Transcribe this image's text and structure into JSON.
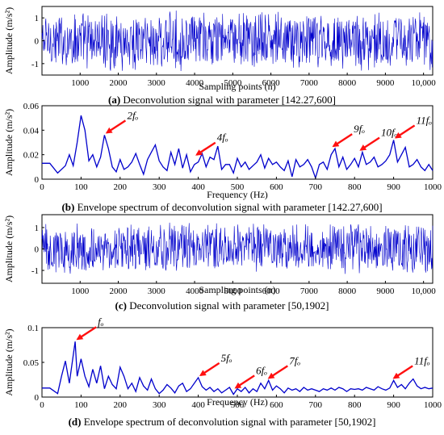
{
  "figure_colors": {
    "signal": "#0000cc",
    "arrow": "#ff1010",
    "axis": "#000000"
  },
  "chart_data": [
    {
      "type": "line",
      "panel": "(a)",
      "caption_prefix": "(a)",
      "caption": "Deconvolution signal with parameter [142.27,600]",
      "xlabel": "Sampling points (n)",
      "ylabel": "Amplitude (m/s²)",
      "xlim": [
        0,
        10240
      ],
      "ylim": [
        -1.5,
        1.5
      ],
      "xticks": [
        1000,
        2000,
        3000,
        4000,
        5000,
        6000,
        7000,
        8000,
        9000,
        "10,000"
      ],
      "yticks": [
        1,
        0,
        -1
      ],
      "grid": false,
      "signal_style": "dense noise",
      "envelope_peak": 1.4,
      "annotations": []
    },
    {
      "type": "line",
      "panel": "(b)",
      "caption_prefix": "(b)",
      "caption": "Envelope spectrum of deconvolution signal with parameter [142.27,600]",
      "xlabel": "Frequency (Hz)",
      "ylabel": "Amplitude (m/s²)",
      "xlim": [
        0,
        1000
      ],
      "ylim": [
        0,
        0.06
      ],
      "xticks": [
        0,
        100,
        200,
        300,
        400,
        500,
        600,
        700,
        800,
        900,
        1000
      ],
      "yticks": [
        0,
        0.02,
        0.04,
        0.06
      ],
      "grid": false,
      "x": [
        0,
        20,
        40,
        60,
        70,
        80,
        90,
        100,
        110,
        120,
        130,
        140,
        150,
        160,
        170,
        180,
        190,
        200,
        210,
        220,
        230,
        240,
        250,
        260,
        270,
        280,
        290,
        300,
        310,
        320,
        330,
        340,
        350,
        360,
        370,
        380,
        390,
        400,
        410,
        420,
        430,
        440,
        450,
        460,
        470,
        480,
        490,
        500,
        510,
        520,
        530,
        540,
        550,
        560,
        570,
        580,
        590,
        600,
        610,
        620,
        630,
        640,
        650,
        660,
        670,
        680,
        690,
        700,
        710,
        720,
        730,
        740,
        750,
        760,
        770,
        780,
        790,
        800,
        810,
        820,
        830,
        840,
        850,
        860,
        870,
        880,
        890,
        900,
        910,
        920,
        930,
        940,
        950,
        960,
        970,
        980,
        990,
        1000
      ],
      "y": [
        0.013,
        0.013,
        0.005,
        0.011,
        0.02,
        0.011,
        0.03,
        0.052,
        0.04,
        0.015,
        0.02,
        0.01,
        0.018,
        0.036,
        0.025,
        0.01,
        0.006,
        0.016,
        0.008,
        0.01,
        0.014,
        0.021,
        0.012,
        0.004,
        0.016,
        0.022,
        0.028,
        0.015,
        0.01,
        0.007,
        0.022,
        0.012,
        0.025,
        0.009,
        0.02,
        0.006,
        0.012,
        0.014,
        0.021,
        0.01,
        0.018,
        0.016,
        0.027,
        0.008,
        0.012,
        0.012,
        0.005,
        0.017,
        0.01,
        0.014,
        0.008,
        0.011,
        0.014,
        0.02,
        0.009,
        0.017,
        0.012,
        0.014,
        0.01,
        0.007,
        0.015,
        0.002,
        0.016,
        0.01,
        0.012,
        0.016,
        0.01,
        0.001,
        0.012,
        0.014,
        0.008,
        0.02,
        0.025,
        0.01,
        0.018,
        0.008,
        0.012,
        0.017,
        0.01,
        0.022,
        0.012,
        0.014,
        0.018,
        0.01,
        0.012,
        0.015,
        0.02,
        0.032,
        0.014,
        0.02,
        0.026,
        0.01,
        0.012,
        0.016,
        0.01,
        0.007,
        0.012,
        0.007
      ],
      "annotations": [
        {
          "label": "2fₒ",
          "x": 160,
          "y": 0.036
        },
        {
          "label": "4fₒ",
          "x": 390,
          "y": 0.018
        },
        {
          "label": "9fₒ",
          "x": 740,
          "y": 0.025
        },
        {
          "label": "10fₒ",
          "x": 810,
          "y": 0.022
        },
        {
          "label": "11fₒ",
          "x": 900,
          "y": 0.032
        }
      ]
    },
    {
      "type": "line",
      "panel": "(c)",
      "caption_prefix": "(c)",
      "caption": "Deconvolution signal with parameter [50,1902]",
      "xlabel": "Sampling points (n)",
      "ylabel": "Amplitude (m/s²)",
      "xlim": [
        0,
        10240
      ],
      "ylim": [
        -1.6,
        1.6
      ],
      "xticks": [
        1000,
        2000,
        3000,
        4000,
        5000,
        6000,
        7000,
        8000,
        9000,
        "10,000"
      ],
      "yticks": [
        1,
        0,
        -1
      ],
      "grid": false,
      "signal_style": "dense noise",
      "envelope_peak": 1.3,
      "annotations": []
    },
    {
      "type": "line",
      "panel": "(d)",
      "caption_prefix": "(d)",
      "caption": "Envelope spectrum of deconvolution signal with parameter [50,1902]",
      "xlabel": "Frequency (Hz)",
      "ylabel": "Amplitude (m/s²)",
      "xlim": [
        0,
        1000
      ],
      "ylim": [
        0,
        0.1
      ],
      "xticks": [
        0,
        100,
        200,
        300,
        400,
        500,
        600,
        700,
        800,
        900,
        1000
      ],
      "yticks": [
        0,
        0.05,
        0.1
      ],
      "grid": false,
      "x": [
        0,
        20,
        40,
        50,
        60,
        70,
        80,
        85,
        90,
        100,
        110,
        120,
        130,
        140,
        150,
        160,
        170,
        180,
        190,
        200,
        210,
        220,
        230,
        240,
        250,
        260,
        270,
        280,
        290,
        300,
        310,
        320,
        330,
        340,
        350,
        360,
        370,
        380,
        390,
        400,
        410,
        420,
        430,
        440,
        450,
        460,
        470,
        480,
        490,
        500,
        510,
        520,
        530,
        540,
        550,
        560,
        570,
        580,
        590,
        600,
        610,
        620,
        630,
        640,
        650,
        660,
        670,
        680,
        690,
        700,
        710,
        720,
        730,
        740,
        750,
        760,
        770,
        780,
        790,
        800,
        810,
        820,
        830,
        840,
        850,
        860,
        870,
        880,
        890,
        900,
        910,
        920,
        930,
        940,
        950,
        960,
        970,
        980,
        990,
        1000
      ],
      "y": [
        0.013,
        0.013,
        0.005,
        0.03,
        0.052,
        0.02,
        0.06,
        0.08,
        0.03,
        0.055,
        0.03,
        0.015,
        0.04,
        0.02,
        0.045,
        0.012,
        0.03,
        0.018,
        0.012,
        0.043,
        0.03,
        0.012,
        0.02,
        0.008,
        0.028,
        0.016,
        0.01,
        0.026,
        0.012,
        0.005,
        0.01,
        0.018,
        0.013,
        0.006,
        0.016,
        0.02,
        0.008,
        0.012,
        0.02,
        0.028,
        0.015,
        0.01,
        0.014,
        0.008,
        0.012,
        0.006,
        0.01,
        0.014,
        0.004,
        0.012,
        0.008,
        0.014,
        0.006,
        0.012,
        0.008,
        0.02,
        0.012,
        0.024,
        0.01,
        0.016,
        0.012,
        0.006,
        0.013,
        0.01,
        0.012,
        0.008,
        0.014,
        0.01,
        0.012,
        0.01,
        0.008,
        0.012,
        0.01,
        0.013,
        0.01,
        0.014,
        0.012,
        0.008,
        0.012,
        0.011,
        0.012,
        0.01,
        0.014,
        0.012,
        0.01,
        0.015,
        0.012,
        0.01,
        0.013,
        0.024,
        0.014,
        0.018,
        0.012,
        0.02,
        0.026,
        0.016,
        0.012,
        0.014,
        0.012,
        0.013
      ],
      "annotations": [
        {
          "label": "fₒ",
          "x": 85,
          "y": 0.08
        },
        {
          "label": "5fₒ",
          "x": 400,
          "y": 0.028
        },
        {
          "label": "6fₒ",
          "x": 490,
          "y": 0.01
        },
        {
          "label": "7fₒ",
          "x": 575,
          "y": 0.024
        },
        {
          "label": "11fₒ",
          "x": 895,
          "y": 0.024
        }
      ]
    }
  ]
}
